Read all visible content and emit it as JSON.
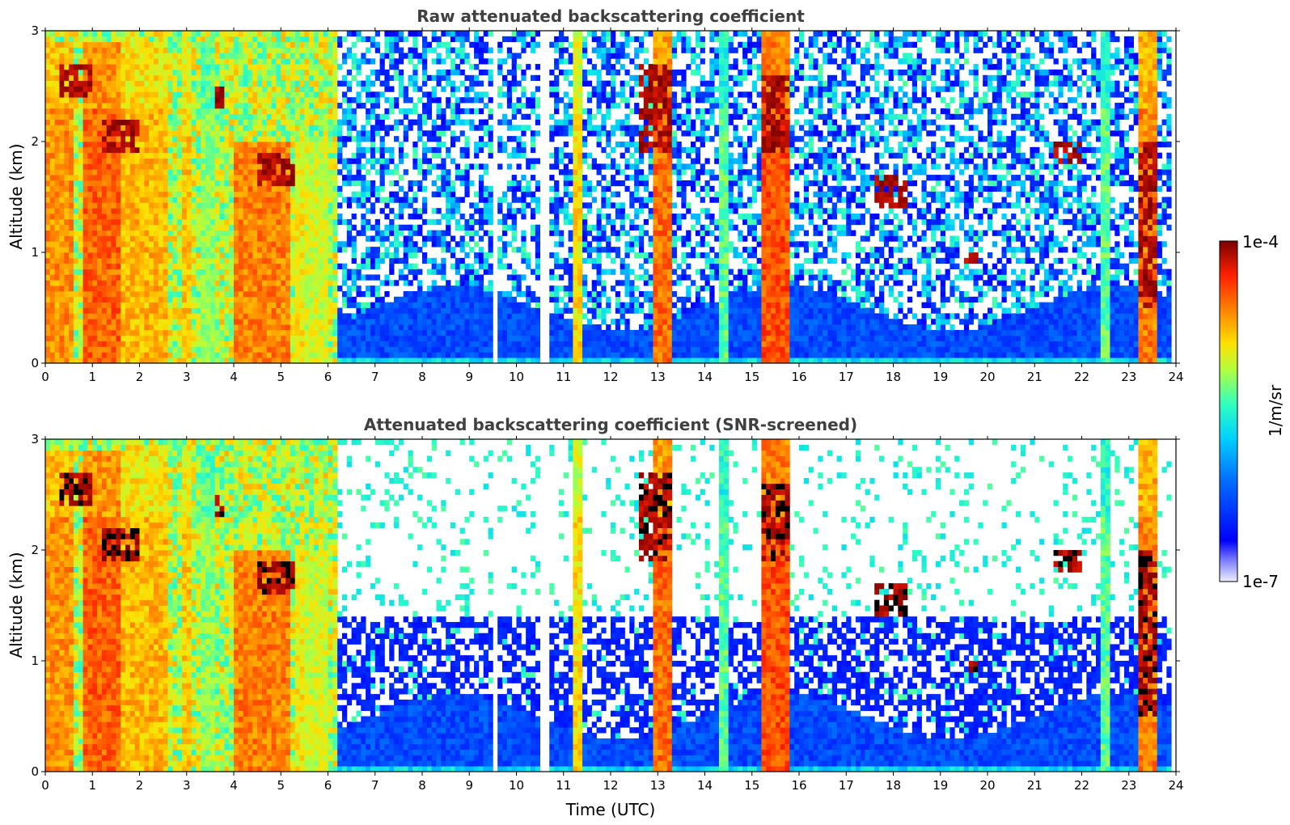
{
  "chart_data": [
    {
      "type": "heatmap",
      "title": "Raw attenuated backscattering coefficient",
      "xlabel": "",
      "ylabel": "Altitude (km)",
      "xlim": [
        0,
        24
      ],
      "ylim": [
        0,
        3
      ],
      "x_ticks": [
        "0",
        "1",
        "2",
        "3",
        "4",
        "5",
        "6",
        "7",
        "8",
        "9",
        "10",
        "11",
        "12",
        "13",
        "14",
        "15",
        "16",
        "17",
        "18",
        "19",
        "20",
        "21",
        "22",
        "23",
        "24"
      ],
      "y_ticks": [
        "0",
        "1",
        "2",
        "3"
      ],
      "screened": false,
      "description_series": {
        "precip_columns_utc": [
          [
            0.0,
            0.55
          ],
          [
            0.75,
            1.6
          ],
          [
            1.6,
            2.75
          ],
          [
            2.85,
            3.1
          ],
          [
            3.3,
            3.6
          ],
          [
            4.0,
            5.2
          ],
          [
            5.3,
            5.9
          ]
        ],
        "gaps_utc": [
          0.6,
          9.55,
          10.55,
          10.65,
          11.9,
          19.0
        ],
        "cloud_layers": [
          {
            "x": [
              0.3,
              1.0
            ],
            "y": [
              2.4,
              2.7
            ]
          },
          {
            "x": [
              1.2,
              2.0
            ],
            "y": [
              1.9,
              2.2
            ]
          },
          {
            "x": [
              3.6,
              3.8
            ],
            "y": [
              2.3,
              2.5
            ]
          },
          {
            "x": [
              4.5,
              5.3
            ],
            "y": [
              1.6,
              1.9
            ]
          },
          {
            "x": [
              12.6,
              13.3
            ],
            "y": [
              1.9,
              2.7
            ]
          },
          {
            "x": [
              15.2,
              15.8
            ],
            "y": [
              1.9,
              2.6
            ]
          },
          {
            "x": [
              17.6,
              18.3
            ],
            "y": [
              1.4,
              1.7
            ]
          },
          {
            "x": [
              19.5,
              19.8
            ],
            "y": [
              0.9,
              1.0
            ]
          },
          {
            "x": [
              21.4,
              22.0
            ],
            "y": [
              1.8,
              2.0
            ]
          },
          {
            "x": [
              23.2,
              23.6
            ],
            "y": [
              0.5,
              2.0
            ]
          }
        ]
      }
    },
    {
      "type": "heatmap",
      "title": "Attenuated backscattering coefficient (SNR-screened)",
      "xlabel": "Time (UTC)",
      "ylabel": "Altitude (km)",
      "xlim": [
        0,
        24
      ],
      "ylim": [
        0,
        3
      ],
      "x_ticks": [
        "0",
        "1",
        "2",
        "3",
        "4",
        "5",
        "6",
        "7",
        "8",
        "9",
        "10",
        "11",
        "12",
        "13",
        "14",
        "15",
        "16",
        "17",
        "18",
        "19",
        "20",
        "21",
        "22",
        "23",
        "24"
      ],
      "y_ticks": [
        "0",
        "1",
        "2",
        "3"
      ],
      "screened": true
    }
  ],
  "colorbar": {
    "label": "1/m/sr",
    "max_label": "1e-4",
    "min_label": "1e-7",
    "colormap": [
      "#e8e8ff",
      "#0000ff",
      "#0080ff",
      "#00e8ff",
      "#80ff80",
      "#ffff00",
      "#ff8000",
      "#ff2000",
      "#800000"
    ]
  }
}
